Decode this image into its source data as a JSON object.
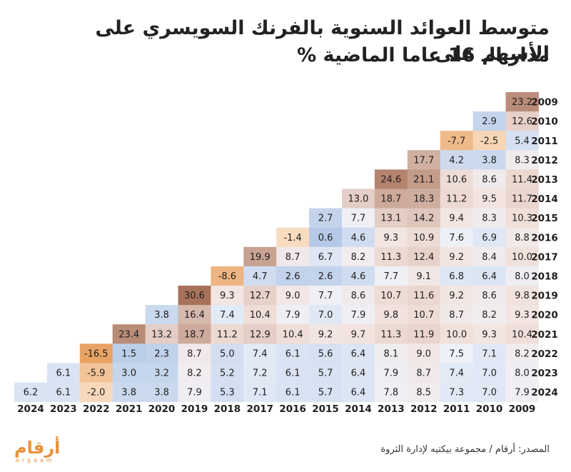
{
  "title": {
    "line1": "متوسط العوائد السنوية بالفرنك السويسري على الأسهم على",
    "line2": "مدار الـ 16 عاما الماضية %"
  },
  "source": "المصدر: أرقام / مجموعة بيكتيه لإدارة الثروة",
  "logo": {
    "arabic": "أرقام",
    "latin": "argaam"
  },
  "colors": {
    "positive_high": "#a8725a",
    "positive_low": "#f3e4df",
    "neutral": "#eef1f8",
    "blue_low": "#e3eaf6",
    "blue_high": "#b4c9e6",
    "negative_high": "#e8a364",
    "negative_low": "#fbe3cc"
  },
  "chart_data": {
    "type": "heatmap",
    "description_of_axes": "row = end year, column = start year",
    "columns": [
      "2024",
      "2023",
      "2022",
      "2021",
      "2020",
      "2019",
      "2018",
      "2017",
      "2016",
      "2015",
      "2014",
      "2013",
      "2012",
      "2011",
      "2010",
      "2009"
    ],
    "rows": [
      "2009",
      "2010",
      "2011",
      "2012",
      "2013",
      "2014",
      "2015",
      "2016",
      "2017",
      "2018",
      "2019",
      "2020",
      "2021",
      "2022",
      "2023",
      "2024"
    ],
    "values": [
      [
        null,
        null,
        null,
        null,
        null,
        null,
        null,
        null,
        null,
        null,
        null,
        null,
        null,
        null,
        null,
        23.2
      ],
      [
        null,
        null,
        null,
        null,
        null,
        null,
        null,
        null,
        null,
        null,
        null,
        null,
        null,
        null,
        2.9,
        12.6
      ],
      [
        null,
        null,
        null,
        null,
        null,
        null,
        null,
        null,
        null,
        null,
        null,
        null,
        null,
        -7.7,
        -2.5,
        5.4
      ],
      [
        null,
        null,
        null,
        null,
        null,
        null,
        null,
        null,
        null,
        null,
        null,
        null,
        17.7,
        4.2,
        3.8,
        8.3
      ],
      [
        null,
        null,
        null,
        null,
        null,
        null,
        null,
        null,
        null,
        null,
        null,
        24.6,
        21.1,
        10.6,
        8.6,
        11.4
      ],
      [
        null,
        null,
        null,
        null,
        null,
        null,
        null,
        null,
        null,
        null,
        13.0,
        18.7,
        18.3,
        11.2,
        9.5,
        11.7
      ],
      [
        null,
        null,
        null,
        null,
        null,
        null,
        null,
        null,
        null,
        2.7,
        7.7,
        13.1,
        14.2,
        9.4,
        8.3,
        10.3
      ],
      [
        null,
        null,
        null,
        null,
        null,
        null,
        null,
        null,
        -1.4,
        0.6,
        4.6,
        9.3,
        10.9,
        7.6,
        6.9,
        8.8
      ],
      [
        null,
        null,
        null,
        null,
        null,
        null,
        null,
        19.9,
        8.7,
        6.7,
        8.2,
        11.3,
        12.4,
        9.2,
        8.4,
        10.0
      ],
      [
        null,
        null,
        null,
        null,
        null,
        null,
        -8.6,
        4.7,
        2.6,
        2.6,
        4.6,
        7.7,
        9.1,
        6.8,
        6.4,
        8.0
      ],
      [
        null,
        null,
        null,
        null,
        null,
        30.6,
        9.3,
        12.7,
        9.0,
        7.7,
        8.6,
        10.7,
        11.6,
        9.2,
        8.6,
        9.8
      ],
      [
        null,
        null,
        null,
        null,
        3.8,
        16.4,
        7.4,
        10.4,
        7.9,
        7.0,
        7.9,
        9.8,
        10.7,
        8.7,
        8.2,
        9.3
      ],
      [
        null,
        null,
        null,
        23.4,
        13.2,
        18.7,
        11.2,
        12.9,
        10.4,
        9.2,
        9.7,
        11.3,
        11.9,
        10.0,
        9.3,
        10.4
      ],
      [
        null,
        null,
        -16.5,
        1.5,
        2.3,
        8.7,
        5.0,
        7.4,
        6.1,
        5.6,
        6.4,
        8.1,
        9.0,
        7.5,
        7.1,
        8.2
      ],
      [
        null,
        6.1,
        -5.9,
        3.0,
        3.2,
        8.2,
        5.2,
        7.2,
        6.1,
        5.7,
        6.4,
        7.9,
        8.7,
        7.4,
        7.0,
        8.0
      ],
      [
        6.2,
        6.1,
        -2.0,
        3.8,
        3.8,
        7.9,
        5.3,
        7.1,
        6.1,
        5.7,
        6.4,
        7.8,
        8.5,
        7.3,
        7.0,
        7.9
      ]
    ]
  }
}
